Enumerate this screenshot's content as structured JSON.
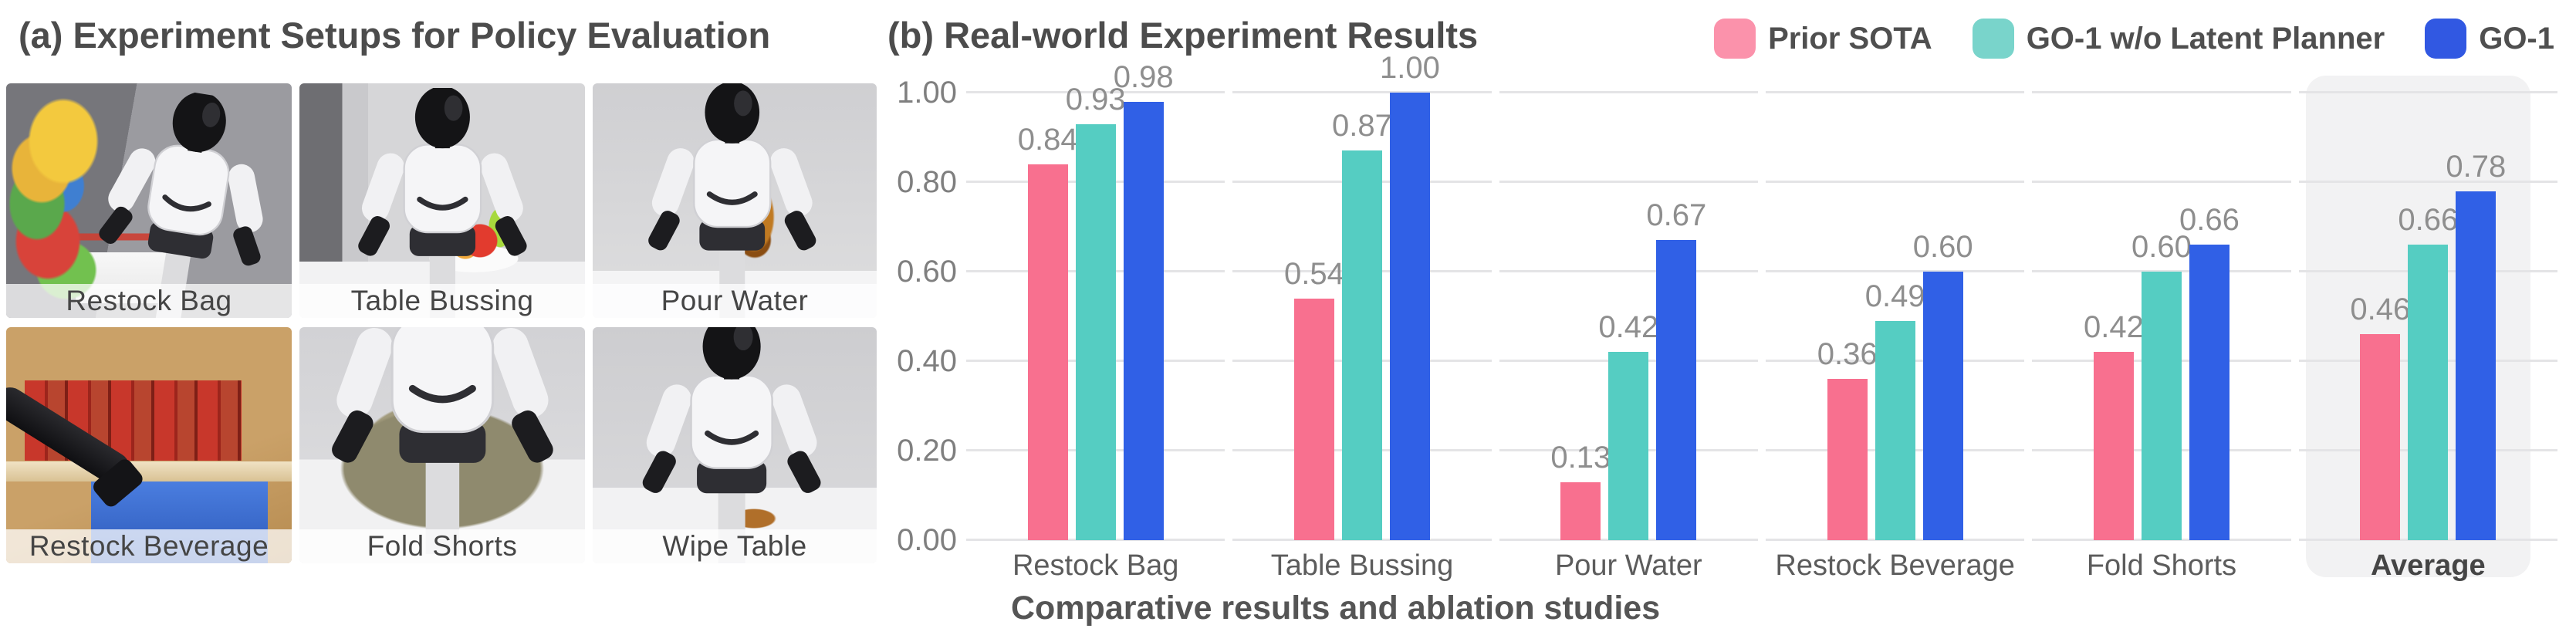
{
  "section_a": {
    "title": "(a) Experiment Setups for Policy Evaluation",
    "photos": [
      {
        "label": "Restock Bag"
      },
      {
        "label": "Table Bussing"
      },
      {
        "label": "Pour Water"
      },
      {
        "label": "Restock Beverage"
      },
      {
        "label": "Fold Shorts"
      },
      {
        "label": "Wipe Table"
      }
    ]
  },
  "section_b": {
    "title": "(b) Real-world Experiment Results",
    "caption": "Comparative results and ablation studies"
  },
  "legend": {
    "items": [
      {
        "label": "Prior SOTA",
        "swatch_color": "#FB92AB"
      },
      {
        "label": "GO-1 w/o Latent Planner",
        "swatch_color": "#79D4CB"
      },
      {
        "label": "GO-1",
        "swatch_color": "#3158E2"
      }
    ]
  },
  "chart_data": {
    "type": "bar",
    "title": "(b) Real-world Experiment Results",
    "categories": [
      "Restock Bag",
      "Table Bussing",
      "Pour Water",
      "Restock Beverage",
      "Fold Shorts",
      "Average"
    ],
    "series": [
      {
        "name": "Prior SOTA",
        "color": "#F8708F",
        "values": [
          0.84,
          0.54,
          0.13,
          0.36,
          0.42,
          0.46
        ]
      },
      {
        "name": "GO-1 w/o Latent Planner",
        "color": "#55CDC2",
        "values": [
          0.93,
          0.87,
          0.42,
          0.49,
          0.6,
          0.66
        ]
      },
      {
        "name": "GO-1",
        "color": "#3060E6",
        "values": [
          0.98,
          1.0,
          0.67,
          0.6,
          0.66,
          0.78
        ]
      }
    ],
    "ylabel": "",
    "xlabel": "",
    "ylim": [
      0,
      1
    ],
    "yticks": [
      "0.00",
      "0.20",
      "0.40",
      "0.60",
      "0.80",
      "1.00"
    ],
    "grid": true,
    "legend_position": "top-right",
    "highlighted_category": "Average",
    "highlight_color": "#f2f2f3",
    "value_label_color": "#8e8e8e",
    "caption": "Comparative results and ablation studies"
  }
}
